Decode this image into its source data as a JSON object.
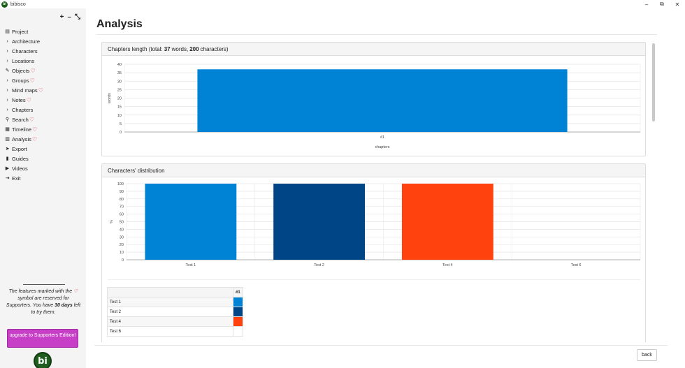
{
  "window": {
    "app_icon": "bi",
    "title": "bibisco",
    "controls": [
      {
        "name": "minimize",
        "glyph": "–"
      },
      {
        "name": "maximize",
        "glyph": "⧉"
      },
      {
        "name": "close",
        "glyph": "✕"
      }
    ]
  },
  "sidebar": {
    "tools": [
      {
        "name": "expand",
        "glyph": "+"
      },
      {
        "name": "collapse",
        "glyph": "–"
      },
      {
        "name": "compress",
        "glyph": "⤡"
      }
    ],
    "items": [
      {
        "label": "Project",
        "icon": "project-icon",
        "glyph": "▤",
        "heart": false
      },
      {
        "label": "Architecture",
        "icon": "chevron-right-icon",
        "glyph": "›",
        "heart": false
      },
      {
        "label": "Characters",
        "icon": "chevron-right-icon",
        "glyph": "›",
        "heart": false
      },
      {
        "label": "Locations",
        "icon": "chevron-right-icon",
        "glyph": "›",
        "heart": false
      },
      {
        "label": "Objects",
        "icon": "pencil-icon",
        "glyph": "✎",
        "heart": true
      },
      {
        "label": "Groups",
        "icon": "chevron-right-icon",
        "glyph": "›",
        "heart": true
      },
      {
        "label": "Mind maps",
        "icon": "chevron-right-icon",
        "glyph": "›",
        "heart": true
      },
      {
        "label": "Notes",
        "icon": "chevron-right-icon",
        "glyph": "›",
        "heart": true
      },
      {
        "label": "Chapters",
        "icon": "chevron-right-icon",
        "glyph": "›",
        "heart": false
      },
      {
        "label": "Search",
        "icon": "search-icon",
        "glyph": "⚲",
        "heart": true
      },
      {
        "label": "Timeline",
        "icon": "calendar-icon",
        "glyph": "▦",
        "heart": true
      },
      {
        "label": "Analysis",
        "icon": "bar-chart-icon",
        "glyph": "▥",
        "heart": true
      },
      {
        "label": "Export",
        "icon": "send-icon",
        "glyph": "➤",
        "heart": false
      },
      {
        "label": "Guides",
        "icon": "book-icon",
        "glyph": "▮",
        "heart": false
      },
      {
        "label": "Videos",
        "icon": "video-icon",
        "glyph": "▶",
        "heart": false
      },
      {
        "label": "Exit",
        "icon": "exit-icon",
        "glyph": "⇥",
        "heart": false
      }
    ],
    "note": {
      "part1": "The features marked with the",
      "part2": "symbol are reserved for Supporters. You have",
      "days": "30 days",
      "part3": "left to try them."
    },
    "upgrade_label": "upgrade to Supporters Edition!",
    "logo_text": "bi"
  },
  "main": {
    "title": "Analysis",
    "back_label": "back"
  },
  "chapters_panel": {
    "title_prefix": "Chapters length (total:",
    "words_count": "37",
    "words_label": "words,",
    "chars_count": "200",
    "chars_label": "characters)"
  },
  "distribution_panel": {
    "title": "Characters' distribution",
    "table_header": "#1",
    "rows": [
      {
        "name": "Test 1",
        "color": "#0083d4"
      },
      {
        "name": "Test 2",
        "color": "#004586"
      },
      {
        "name": "Test 4",
        "color": "#ff420e"
      },
      {
        "name": "Test 6",
        "color": ""
      }
    ]
  },
  "chart_data": [
    {
      "type": "bar",
      "categories": [
        "#1"
      ],
      "values": [
        37
      ],
      "xlabel": "chapters",
      "ylabel": "words",
      "ylim": [
        0,
        40
      ],
      "yticks": [
        0,
        5,
        10,
        15,
        20,
        25,
        30,
        35,
        40
      ],
      "colors": [
        "#0083d4"
      ],
      "grid": true
    },
    {
      "type": "bar",
      "categories": [
        "Test 1",
        "Test 2",
        "Test 4",
        "Test 6"
      ],
      "values": [
        100,
        100,
        100,
        0
      ],
      "xlabel": "",
      "ylabel": "%",
      "ylim": [
        0,
        100
      ],
      "yticks": [
        0,
        10,
        20,
        30,
        40,
        50,
        60,
        70,
        80,
        90,
        100
      ],
      "colors": [
        "#0083d4",
        "#004586",
        "#ff420e",
        "#ffd320"
      ],
      "grid": true
    }
  ]
}
